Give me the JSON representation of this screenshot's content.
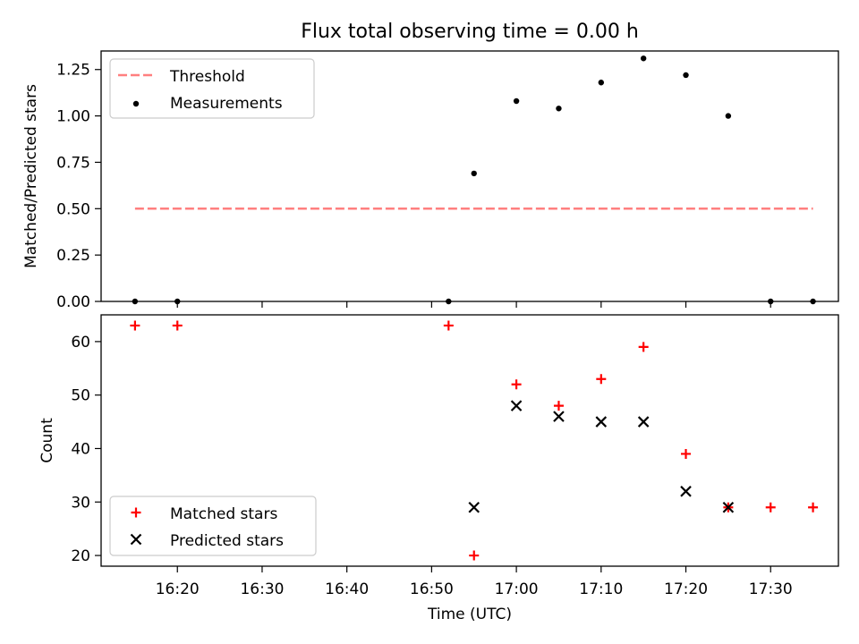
{
  "figure": {
    "title": "Flux total observing time = 0.00 h"
  },
  "chart_data": [
    {
      "type": "scatter",
      "ylabel": "Matched/Predicted stars",
      "xlim": [
        "16:11",
        "17:38"
      ],
      "ylim": [
        0,
        1.35
      ],
      "yticks": [
        0.0,
        0.25,
        0.5,
        0.75,
        1.0,
        1.25
      ],
      "ytick_labels": [
        "0.00",
        "0.25",
        "0.50",
        "0.75",
        "1.00",
        "1.25"
      ],
      "legend_position": "top-left",
      "legend": [
        "Threshold",
        "Measurements"
      ],
      "series": [
        {
          "name": "Threshold",
          "kind": "dashed-line",
          "color": "#ff7f7f",
          "x": [
            "16:15",
            "17:35"
          ],
          "y": [
            0.5,
            0.5
          ]
        },
        {
          "name": "Measurements",
          "kind": "dot",
          "color": "#000000",
          "x": [
            "16:15",
            "16:20",
            "16:52",
            "16:55",
            "17:00",
            "17:05",
            "17:10",
            "17:15",
            "17:20",
            "17:25",
            "17:30",
            "17:35"
          ],
          "y": [
            0.0,
            0.0,
            0.0,
            0.69,
            1.08,
            1.04,
            1.18,
            1.31,
            1.22,
            1.0,
            0.0,
            0.0
          ]
        }
      ]
    },
    {
      "type": "scatter",
      "xlabel": "Time (UTC)",
      "ylabel": "Count",
      "xlim": [
        "16:11",
        "17:38"
      ],
      "ylim": [
        18,
        65
      ],
      "yticks": [
        20,
        30,
        40,
        50,
        60
      ],
      "xticks": [
        "16:20",
        "16:30",
        "16:40",
        "16:50",
        "17:00",
        "17:10",
        "17:20",
        "17:30"
      ],
      "legend_position": "bottom-left",
      "legend": [
        "Matched stars",
        "Predicted stars"
      ],
      "series": [
        {
          "name": "Matched stars",
          "marker": "plus",
          "color": "#ff0000",
          "x": [
            "16:15",
            "16:20",
            "16:52",
            "16:55",
            "17:00",
            "17:05",
            "17:10",
            "17:15",
            "17:20",
            "17:25",
            "17:30",
            "17:35"
          ],
          "y": [
            63,
            63,
            63,
            20,
            52,
            48,
            53,
            59,
            39,
            29,
            29,
            29
          ]
        },
        {
          "name": "Predicted stars",
          "marker": "x",
          "color": "#000000",
          "x": [
            "16:55",
            "17:00",
            "17:05",
            "17:10",
            "17:15",
            "17:20",
            "17:25"
          ],
          "y": [
            29,
            48,
            46,
            45,
            45,
            32,
            29
          ]
        }
      ]
    }
  ]
}
